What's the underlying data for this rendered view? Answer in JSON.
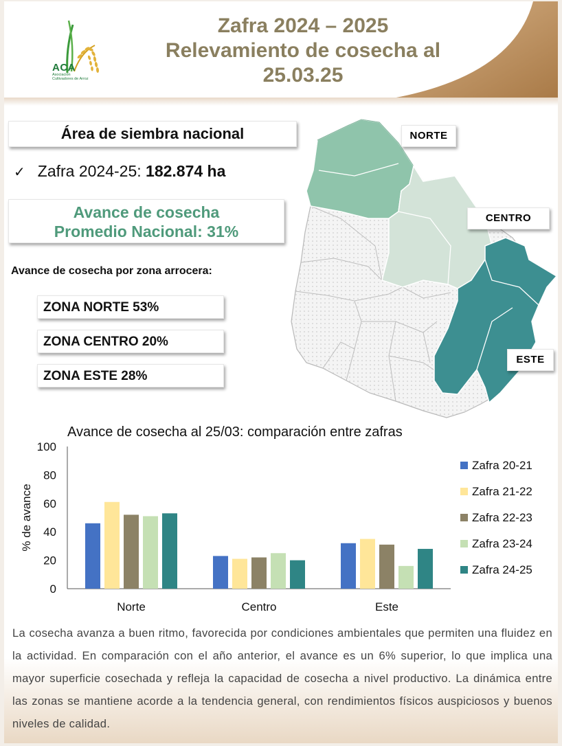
{
  "header": {
    "title_line1": "Zafra 2024 – 2025",
    "title_line2": "Relevamiento de cosecha al",
    "title_line3": "25.03.25",
    "logo_text": "ACA",
    "logo_subtitle_1": "Asociación",
    "logo_subtitle_2": "Cultivadores de Arroz"
  },
  "summary": {
    "area_title": "Área de siembra nacional",
    "zafra_label": "Zafra 2024-25: ",
    "zafra_value": "182.874 ha",
    "avance_line1": "Avance de cosecha",
    "avance_line2": "Promedio Nacional: 31%",
    "zona_heading": "Avance de cosecha por zona arrocera:",
    "zonas": [
      {
        "label": "ZONA NORTE 53%"
      },
      {
        "label": "ZONA CENTRO 20%"
      },
      {
        "label": "ZONA ESTE  28%"
      }
    ]
  },
  "map": {
    "labels": {
      "norte": "NORTE",
      "centro": "CENTRO",
      "este": "ESTE"
    },
    "colors": {
      "norte": "#8fc4ab",
      "centro": "#d3e3d8",
      "este": "#3d8f91",
      "rest": "#f0f0f0"
    }
  },
  "chart_data": {
    "type": "bar",
    "title": "Avance de cosecha al 25/03: comparación entre zafras",
    "ylabel": "% de avance",
    "xlabel": "",
    "ylim": [
      0,
      100
    ],
    "yticks": [
      0,
      20,
      40,
      60,
      80,
      100
    ],
    "grid": false,
    "legend": "right",
    "categories": [
      "Norte",
      "Centro",
      "Este"
    ],
    "series": [
      {
        "name": "Zafra 20-21",
        "color": "#4472c4",
        "values": [
          46,
          23,
          32
        ]
      },
      {
        "name": "Zafra 21-22",
        "color": "#ffe699",
        "values": [
          61,
          21,
          35
        ]
      },
      {
        "name": "Zafra 22-23",
        "color": "#8c8266",
        "values": [
          52,
          22,
          31
        ]
      },
      {
        "name": "Zafra 23-24",
        "color": "#c5e0b4",
        "values": [
          51,
          25,
          16
        ]
      },
      {
        "name": "Zafra 24-25",
        "color": "#2f8585",
        "values": [
          53,
          20,
          28
        ]
      }
    ]
  },
  "footer": {
    "paragraph": "La cosecha avanza a buen ritmo, favorecida por condiciones ambientales que permiten una fluidez en la actividad. En comparación con el año anterior, el avance es un 6% superior, lo que implica una mayor superficie cosechada y refleja la capacidad de cosecha a nivel productivo. La dinámica entre las zonas se mantiene acorde a la tendencia general, con rendimientos físicos auspiciosos y buenos niveles de calidad."
  }
}
